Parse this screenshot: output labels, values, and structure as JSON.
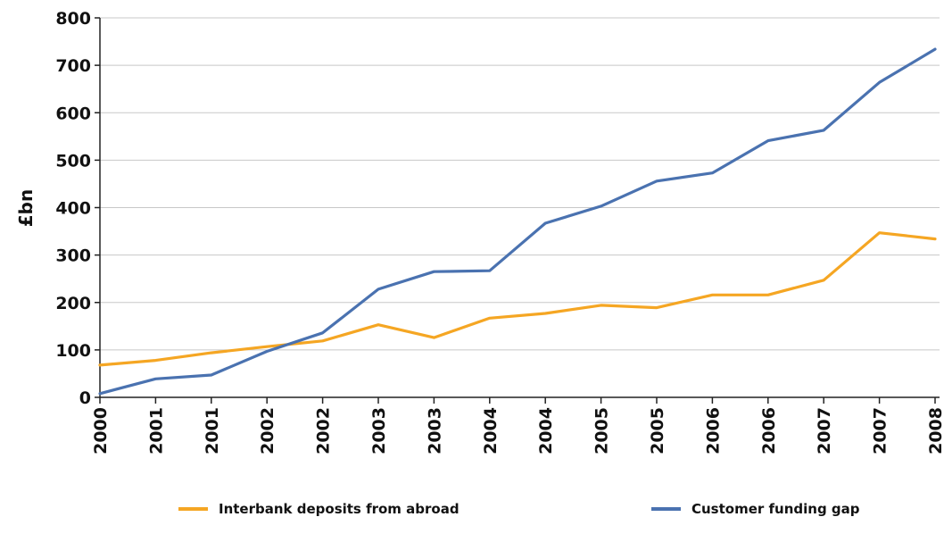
{
  "chart_data": {
    "type": "line",
    "ylabel": "£bn",
    "xlabel": "",
    "title": "",
    "ylim": [
      0,
      800
    ],
    "yticks": [
      0,
      100,
      200,
      300,
      400,
      500,
      600,
      700,
      800
    ],
    "grid": true,
    "legend_position": "bottom",
    "x": [
      "2000",
      "2001",
      "2001",
      "2002",
      "2002",
      "2003",
      "2003",
      "2004",
      "2004",
      "2005",
      "2005",
      "2006",
      "2006",
      "2007",
      "2007",
      "2008"
    ],
    "series": [
      {
        "name": "Interbank deposits from abroad",
        "color": "#F5A623",
        "values": [
          68,
          78,
          94,
          107,
          119,
          153,
          126,
          167,
          177,
          194,
          189,
          216,
          216,
          247,
          347,
          334
        ]
      },
      {
        "name": "Customer funding gap",
        "color": "#4A72B0",
        "values": [
          8,
          39,
          47,
          97,
          136,
          228,
          265,
          267,
          367,
          403,
          456,
          473,
          541,
          563,
          664,
          734
        ]
      }
    ]
  }
}
